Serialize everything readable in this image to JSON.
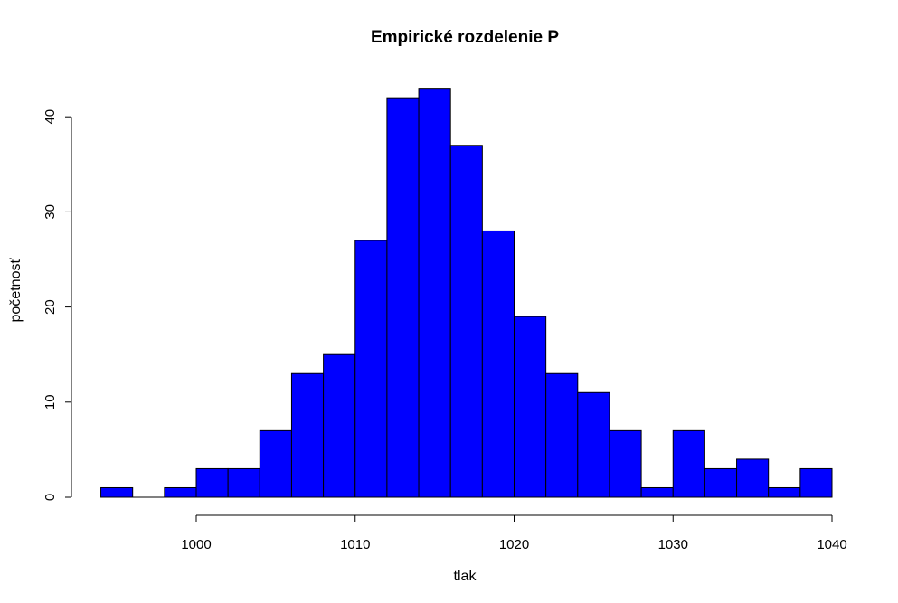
{
  "chart_data": {
    "type": "bar",
    "title": "Empirické rozdelenie P",
    "xlabel": "tlak",
    "ylabel": "početnosť",
    "bin_width": 2,
    "bins": [
      {
        "from": 994,
        "to": 996,
        "count": 1
      },
      {
        "from": 996,
        "to": 998,
        "count": 0
      },
      {
        "from": 998,
        "to": 1000,
        "count": 1
      },
      {
        "from": 1000,
        "to": 1002,
        "count": 3
      },
      {
        "from": 1002,
        "to": 1004,
        "count": 3
      },
      {
        "from": 1004,
        "to": 1006,
        "count": 7
      },
      {
        "from": 1006,
        "to": 1008,
        "count": 13
      },
      {
        "from": 1008,
        "to": 1010,
        "count": 15
      },
      {
        "from": 1010,
        "to": 1012,
        "count": 27
      },
      {
        "from": 1012,
        "to": 1014,
        "count": 42
      },
      {
        "from": 1014,
        "to": 1016,
        "count": 43
      },
      {
        "from": 1016,
        "to": 1018,
        "count": 37
      },
      {
        "from": 1018,
        "to": 1020,
        "count": 28
      },
      {
        "from": 1020,
        "to": 1022,
        "count": 19
      },
      {
        "from": 1022,
        "to": 1024,
        "count": 13
      },
      {
        "from": 1024,
        "to": 1026,
        "count": 11
      },
      {
        "from": 1026,
        "to": 1028,
        "count": 7
      },
      {
        "from": 1028,
        "to": 1030,
        "count": 1
      },
      {
        "from": 1030,
        "to": 1032,
        "count": 7
      },
      {
        "from": 1032,
        "to": 1034,
        "count": 3
      },
      {
        "from": 1034,
        "to": 1036,
        "count": 4
      },
      {
        "from": 1036,
        "to": 1038,
        "count": 1
      },
      {
        "from": 1038,
        "to": 1040,
        "count": 3
      }
    ],
    "xlim": [
      994,
      1040
    ],
    "ylim": [
      0,
      43
    ],
    "x_ticks": [
      1000,
      1010,
      1020,
      1030,
      1040
    ],
    "y_ticks": [
      0,
      10,
      20,
      30,
      40
    ],
    "bar_color": "#0000ff",
    "bar_edge_color": "#000000",
    "grid": false,
    "legend": "none"
  }
}
